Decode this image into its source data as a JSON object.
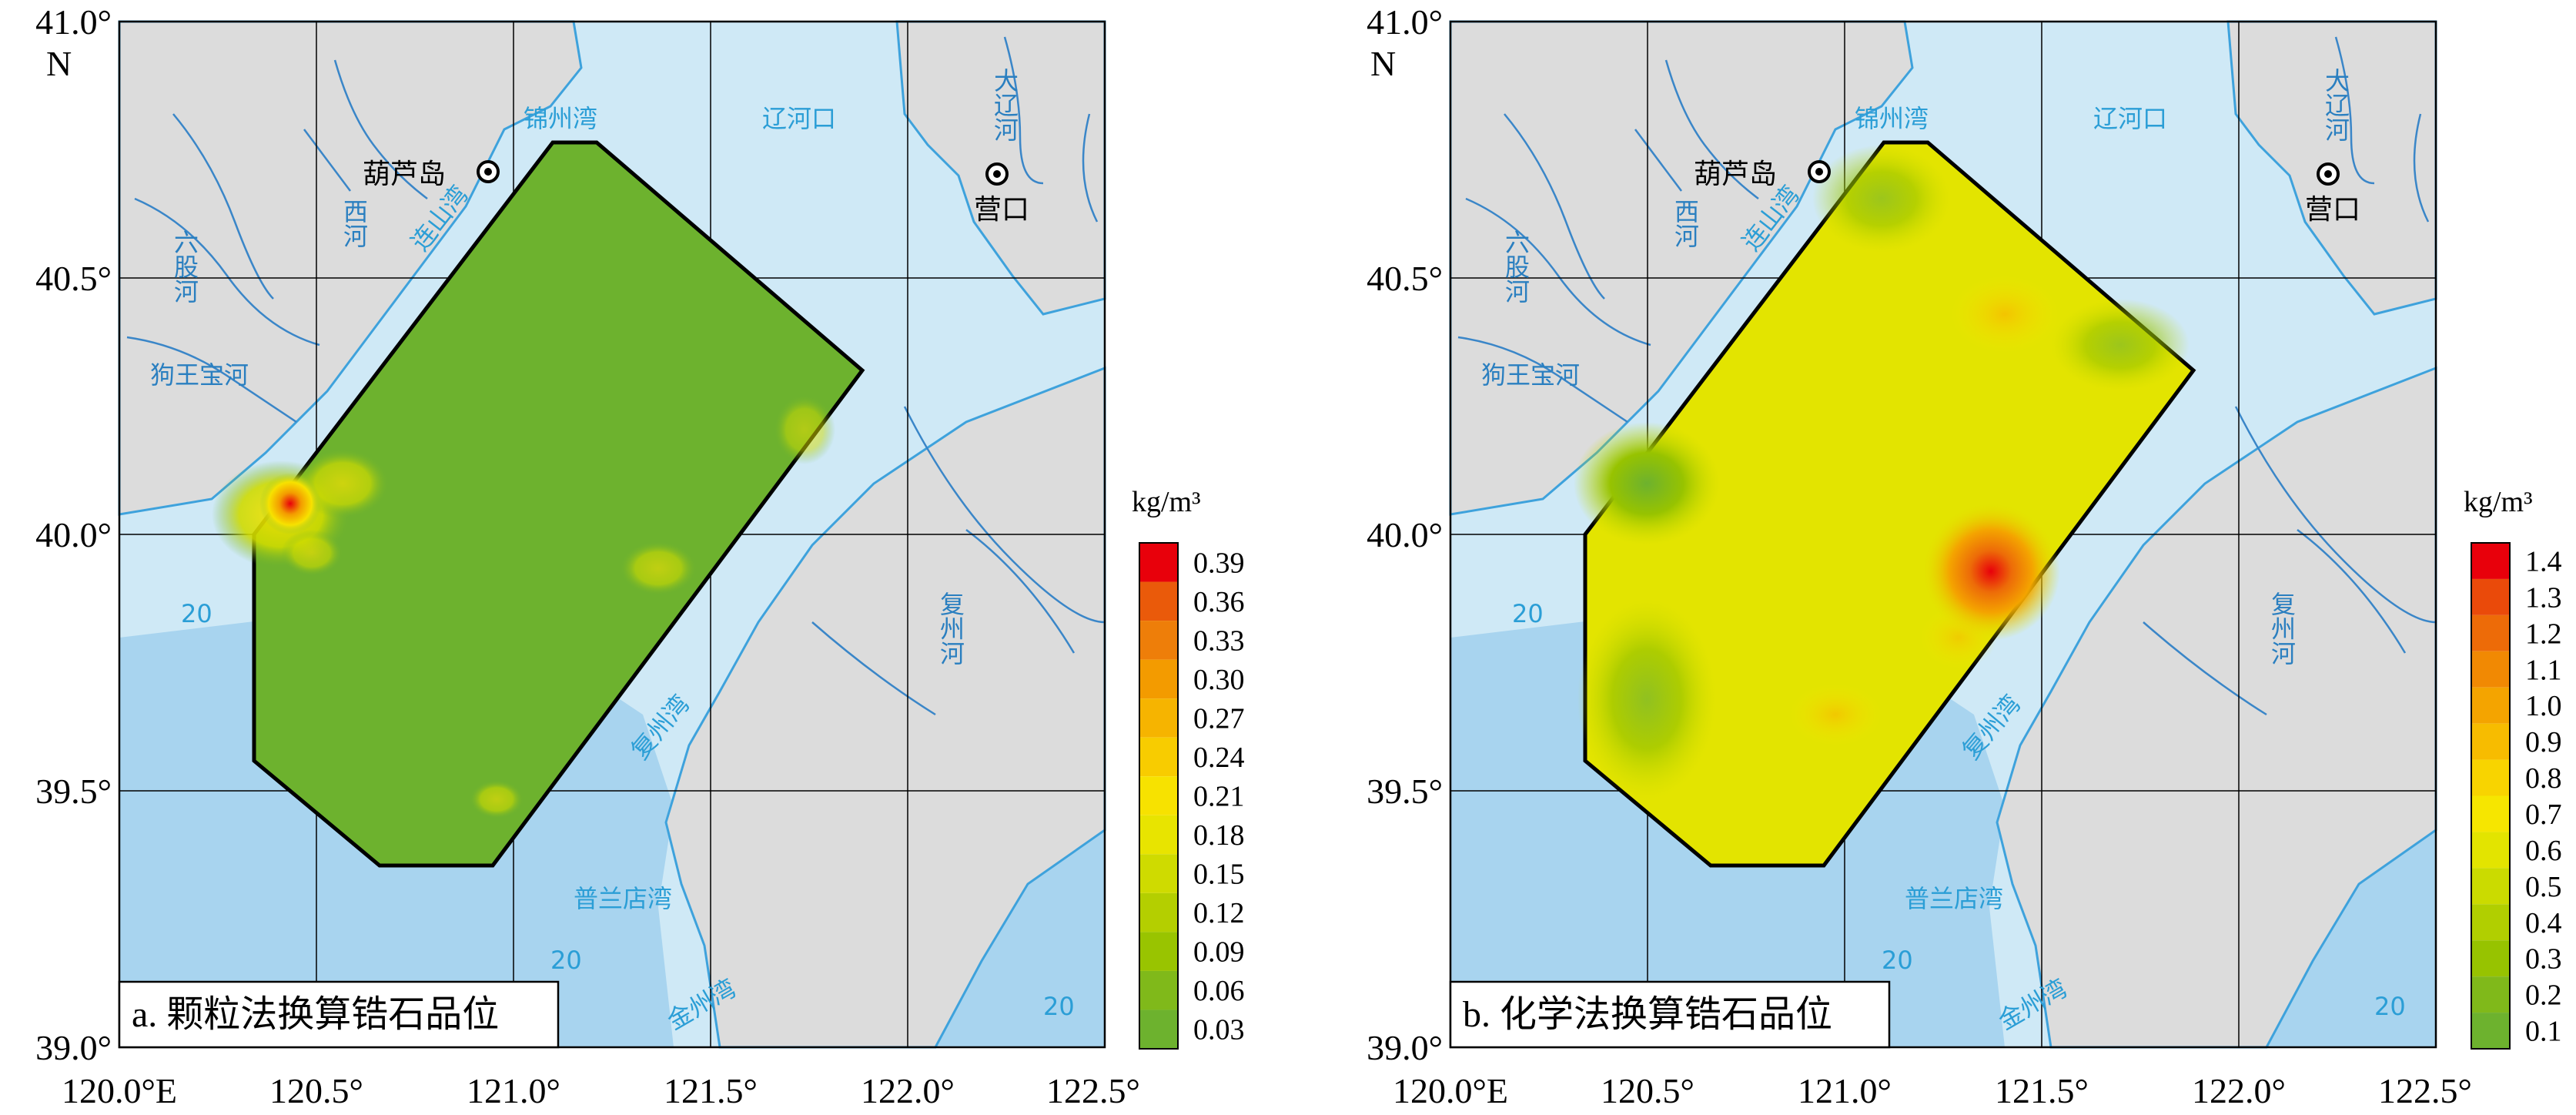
{
  "colors": {
    "land": "#dcdcdc",
    "sea_shallow": "#cfe9f6",
    "sea_deep": "#a8d4ef",
    "coast": "#3ea2dc",
    "grid": "#000000",
    "survey_outline": "#000000"
  },
  "axes": {
    "lon_ticks": [
      "120.0°E",
      "120.5°",
      "121.0°",
      "121.5°",
      "122.0°",
      "122.5°"
    ],
    "lat_ticks": [
      "41.0°",
      "40.5°",
      "40.0°",
      "39.5°",
      "39.0°"
    ],
    "north_label": "N"
  },
  "map_labels": {
    "huludao": "葫芦岛",
    "yingkou": "营口",
    "jinzhou_bay": "锦州湾",
    "liaohekou": "辽河口",
    "lianshan_bay": "连山湾",
    "fuzhou_bay": "复州湾",
    "pulandian_bay": "普兰店湾",
    "jinzhou_bay_south": "金州湾",
    "depth_20": "20",
    "liugu_he": "六股河",
    "gouwangbao_he": "狗王宝河",
    "xi_he": "西河",
    "daliao_he": "大辽河",
    "fuzhou_he": "复州河"
  },
  "panels": [
    {
      "title": "a. 颗粒法换算锆石品位",
      "unit": "kg/m³",
      "legend_labels": [
        "0.39",
        "0.36",
        "0.33",
        "0.30",
        "0.27",
        "0.24",
        "0.21",
        "0.18",
        "0.15",
        "0.12",
        "0.09",
        "0.06",
        "0.03"
      ],
      "legend_colors": [
        "#e8000b",
        "#ea5a0a",
        "#ee7e09",
        "#f39b00",
        "#f6b400",
        "#f8cc00",
        "#f7e200",
        "#e8e400",
        "#cfdb00",
        "#b4cf00",
        "#99c400",
        "#80b91a",
        "#6db22e"
      ],
      "hotspot": {
        "lon": 120.44,
        "lat": 40.07,
        "value": 0.39
      }
    },
    {
      "title": "b. 化学法换算锆石品位",
      "unit": "kg/m³",
      "legend_labels": [
        "1.4",
        "1.3",
        "1.2",
        "1.1",
        "1.0",
        "0.9",
        "0.8",
        "0.7",
        "0.6",
        "0.5",
        "0.4",
        "0.3",
        "0.2",
        "0.1"
      ],
      "legend_colors": [
        "#e8000b",
        "#ea4a0a",
        "#ed6b08",
        "#f18903",
        "#f4a400",
        "#f7bc00",
        "#f8d400",
        "#f6e600",
        "#e3e400",
        "#cbdb00",
        "#b1cf00",
        "#97c300",
        "#80b91a",
        "#6db22e"
      ],
      "hotspot": {
        "lon": 121.39,
        "lat": 39.94,
        "value": 1.4
      }
    }
  ]
}
